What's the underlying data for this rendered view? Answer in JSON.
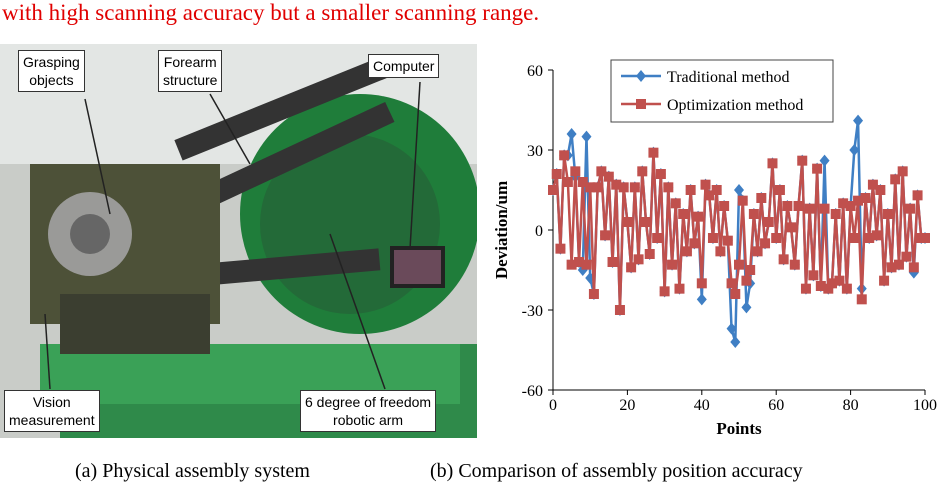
{
  "header": {
    "text": "with high scanning accuracy but a smaller scanning range."
  },
  "photo": {
    "labels": [
      [
        "Grasping",
        "objects"
      ],
      [
        "Forearm",
        "structure"
      ],
      [
        "Computer"
      ],
      [
        "Vision",
        "measurement"
      ],
      [
        "6 degree of freedom",
        "robotic arm"
      ]
    ],
    "caption": "(a) Physical assembly system"
  },
  "chart_data": {
    "type": "line",
    "caption": "(b) Comparison of assembly position accuracy",
    "xlabel": "Points",
    "ylabel": "Deviation/um",
    "x": [
      0,
      1,
      2,
      3,
      4,
      5,
      6,
      7,
      8,
      9,
      10,
      11,
      12,
      13,
      14,
      15,
      16,
      17,
      18,
      19,
      20,
      21,
      22,
      23,
      24,
      25,
      26,
      27,
      28,
      29,
      30,
      31,
      32,
      33,
      34,
      35,
      36,
      37,
      38,
      39,
      40,
      41,
      42,
      43,
      44,
      45,
      46,
      47,
      48,
      49,
      50,
      51,
      52,
      53,
      54,
      55,
      56,
      57,
      58,
      59,
      60,
      61,
      62,
      63,
      64,
      65,
      66,
      67,
      68,
      69,
      70,
      71,
      72,
      73,
      74,
      75,
      76,
      77,
      78,
      79,
      80,
      81,
      82,
      83,
      84,
      85,
      86,
      87,
      88,
      89,
      90,
      91,
      92,
      93,
      94,
      95,
      96,
      97,
      98,
      99,
      100
    ],
    "series": [
      {
        "name": "Traditional method",
        "color": "#3f7fc4",
        "marker": "diamond",
        "values": [
          15,
          21,
          -7,
          28,
          28,
          36,
          20,
          -12,
          -15,
          35,
          -18,
          -24,
          16,
          22,
          -2,
          20,
          -12,
          17,
          -30,
          16,
          3,
          -14,
          16,
          -11,
          22,
          3,
          -9,
          29,
          -3,
          21,
          -23,
          16,
          -13,
          10,
          -22,
          6,
          -8,
          15,
          -5,
          5,
          -26,
          17,
          13,
          -3,
          15,
          -8,
          9,
          -4,
          -37,
          -42,
          15,
          11,
          -29,
          -20,
          6,
          -8,
          12,
          -5,
          3,
          25,
          -3,
          15,
          -11,
          9,
          1,
          -13,
          9,
          26,
          -22,
          8,
          -17,
          23,
          -21,
          26,
          -22,
          -20,
          6,
          -19,
          10,
          -22,
          9,
          30,
          41,
          -22,
          12,
          -3,
          17,
          -2,
          15,
          -19,
          6,
          -14,
          19,
          -13,
          22,
          -10,
          8,
          -16,
          13,
          -3,
          -3
        ]
      },
      {
        "name": "Optimization method",
        "color": "#c0504d",
        "marker": "square",
        "values": [
          15,
          21,
          -7,
          28,
          18,
          -13,
          22,
          -12,
          18,
          -13,
          16,
          -24,
          16,
          22,
          -2,
          20,
          -12,
          17,
          -30,
          16,
          3,
          -14,
          16,
          -11,
          22,
          3,
          -9,
          29,
          -3,
          21,
          -23,
          16,
          -13,
          10,
          -22,
          6,
          -8,
          15,
          -5,
          5,
          -20,
          17,
          13,
          -3,
          15,
          -8,
          9,
          -4,
          -20,
          -24,
          -13,
          11,
          -19,
          -15,
          6,
          -8,
          12,
          -5,
          3,
          25,
          -3,
          15,
          -11,
          9,
          1,
          -13,
          9,
          26,
          -22,
          8,
          -17,
          23,
          -21,
          8,
          -22,
          -20,
          6,
          -19,
          10,
          -22,
          9,
          -3,
          11,
          -26,
          12,
          -3,
          17,
          -2,
          15,
          -19,
          6,
          -14,
          19,
          -13,
          22,
          -10,
          8,
          -14,
          13,
          -3,
          -3
        ]
      }
    ],
    "xlim": [
      0,
      100
    ],
    "xticks": [
      0,
      20,
      40,
      60,
      80,
      100
    ],
    "ylim": [
      -60,
      60
    ],
    "yticks": [
      -60,
      -30,
      0,
      30,
      60
    ]
  }
}
